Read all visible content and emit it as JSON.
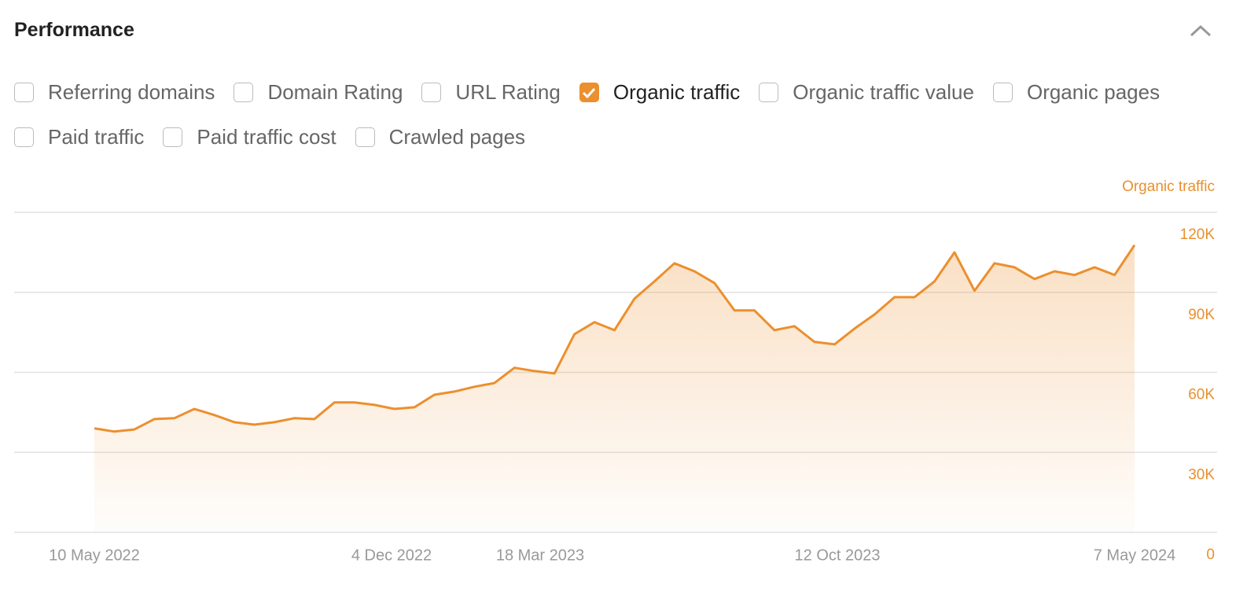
{
  "header": {
    "title": "Performance"
  },
  "metrics": [
    {
      "label": "Referring domains",
      "checked": false
    },
    {
      "label": "Domain Rating",
      "checked": false
    },
    {
      "label": "URL Rating",
      "checked": false
    },
    {
      "label": "Organic traffic",
      "checked": true
    },
    {
      "label": "Organic traffic value",
      "checked": false
    },
    {
      "label": "Organic pages",
      "checked": false
    },
    {
      "label": "Paid traffic",
      "checked": false
    },
    {
      "label": "Paid traffic cost",
      "checked": false
    },
    {
      "label": "Crawled pages",
      "checked": false
    }
  ],
  "chart_data": {
    "type": "area",
    "y_axis_label": "Organic traffic",
    "x": [
      "2022-05-10",
      "2022-05-24",
      "2022-06-07",
      "2022-06-21",
      "2022-07-05",
      "2022-07-19",
      "2022-08-02",
      "2022-08-16",
      "2022-08-30",
      "2022-09-13",
      "2022-09-27",
      "2022-10-11",
      "2022-10-25",
      "2022-11-08",
      "2022-11-22",
      "2022-12-06",
      "2022-12-20",
      "2023-01-03",
      "2023-01-17",
      "2023-01-31",
      "2023-02-14",
      "2023-02-28",
      "2023-03-14",
      "2023-03-28",
      "2023-04-11",
      "2023-04-25",
      "2023-05-09",
      "2023-05-23",
      "2023-06-06",
      "2023-06-20",
      "2023-07-04",
      "2023-07-18",
      "2023-08-01",
      "2023-08-15",
      "2023-08-29",
      "2023-09-12",
      "2023-09-26",
      "2023-10-10",
      "2023-10-24",
      "2023-11-07",
      "2023-11-21",
      "2023-12-05",
      "2023-12-19",
      "2024-01-02",
      "2024-01-16",
      "2024-01-30",
      "2024-02-13",
      "2024-02-27",
      "2024-03-12",
      "2024-03-26",
      "2024-04-09",
      "2024-04-23",
      "2024-05-07"
    ],
    "series": [
      {
        "name": "Organic traffic",
        "color": "#ec8f2e",
        "values": [
          39000,
          37800,
          38600,
          42500,
          42800,
          46300,
          44000,
          41300,
          40400,
          41300,
          42800,
          42500,
          48700,
          48700,
          47800,
          46300,
          46900,
          51600,
          52800,
          54600,
          56000,
          61700,
          60500,
          59600,
          74300,
          78800,
          75800,
          87600,
          94100,
          100900,
          97900,
          93500,
          83200,
          83200,
          75800,
          77300,
          71400,
          70500,
          76400,
          81700,
          88200,
          88200,
          94100,
          105000,
          90600,
          100900,
          99400,
          95000,
          97900,
          96500,
          99400,
          96500,
          107700
        ]
      }
    ],
    "xlim": [
      "2022-05-10",
      "2024-05-07"
    ],
    "xticks": [
      {
        "value": "2022-05-10",
        "label": "10 May 2022"
      },
      {
        "value": "2022-12-04",
        "label": "4 Dec 2022"
      },
      {
        "value": "2023-03-18",
        "label": "18 Mar 2023"
      },
      {
        "value": "2023-10-12",
        "label": "12 Oct 2023"
      },
      {
        "value": "2024-05-07",
        "label": "7 May 2024"
      }
    ],
    "ylim": [
      0,
      120000
    ],
    "yticks": [
      0,
      {
        "value": 30000,
        "label": "30K"
      },
      {
        "value": 60000,
        "label": "60K"
      },
      {
        "value": 90000,
        "label": "90K"
      },
      {
        "value": 120000,
        "label": "120K"
      }
    ],
    "grid": true
  }
}
